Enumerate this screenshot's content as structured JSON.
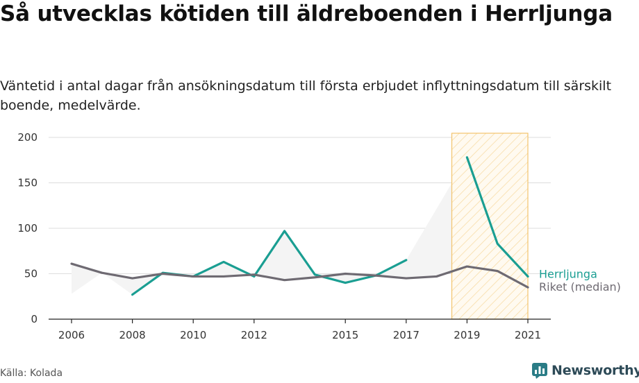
{
  "title": "Så utvecklas kötiden till äldreboenden i Herrljunga",
  "subtitle": "Väntetid i antal dagar från ansökningsdatum till första erbjudet inflyttningsdatum till särskilt boende, medelvärde.",
  "source": "Källa: Kolada",
  "brand": {
    "name": "Newsworthy",
    "icon": "newsworthy-logo-icon"
  },
  "colors": {
    "herrljunga": "#1a9e92",
    "riket": "#6e6a72",
    "highlight": "#f2c36b",
    "area": "#f4f4f4"
  },
  "chart_data": {
    "type": "line",
    "title": "Så utvecklas kötiden till äldreboenden i Herrljunga",
    "xlim": [
      2006,
      2021
    ],
    "ylim": [
      0,
      200
    ],
    "y_ticks": [
      0,
      50,
      100,
      150,
      200
    ],
    "x_ticks": [
      "2006",
      "2008",
      "2010",
      "2012",
      "2015",
      "2017",
      "2019",
      "2021"
    ],
    "grid": "horizontal",
    "highlight_range": [
      2018.5,
      2021
    ],
    "series": [
      {
        "name": "Herrljunga",
        "x": [
          2008,
          2009,
          2010,
          2011,
          2012,
          2013,
          2014,
          2015,
          2016,
          2017,
          2018,
          2019,
          2020,
          2021
        ],
        "values": [
          27,
          51,
          47,
          63,
          47,
          97,
          49,
          40,
          48,
          65,
          null,
          178,
          83,
          47
        ]
      },
      {
        "name": "Riket (median)",
        "x": [
          2006,
          2007,
          2008,
          2009,
          2010,
          2011,
          2012,
          2013,
          2014,
          2015,
          2016,
          2017,
          2018,
          2019,
          2020,
          2021
        ],
        "values": [
          61,
          51,
          45,
          50,
          47,
          47,
          49,
          43,
          46,
          50,
          48,
          45,
          47,
          58,
          53,
          35
        ]
      }
    ]
  }
}
